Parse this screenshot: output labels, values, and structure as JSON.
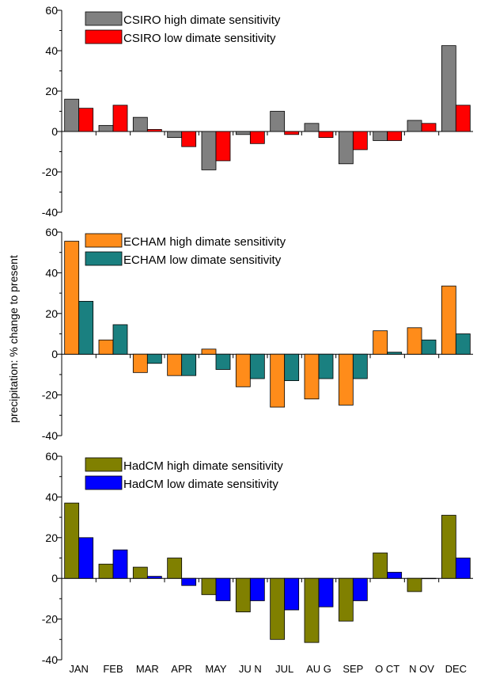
{
  "chart_data": [
    {
      "type": "bar",
      "ylabel": "precipitation: % change to present",
      "ylim": [
        -40,
        60
      ],
      "yticks": [
        -40,
        -20,
        0,
        20,
        40,
        60
      ],
      "categories": [
        "JAN",
        "FEB",
        "MAR",
        "APR",
        "MAY",
        "JUN",
        "JUL",
        "AUG",
        "SEP",
        "OCT",
        "NOV",
        "DEC"
      ],
      "legend_position": "top-left",
      "grid": false,
      "series": [
        {
          "name": "CSIRO high dimate sensitivity",
          "color": "#808080",
          "values": [
            16,
            3,
            7,
            -3,
            -19,
            -1.5,
            10,
            4,
            -16,
            -4.5,
            5.5,
            42.5
          ]
        },
        {
          "name": "CSIRO low dimate sensitivity",
          "color": "#ff0000",
          "values": [
            11.5,
            13,
            1,
            -7.5,
            -14.5,
            -6,
            -1.5,
            -3,
            -9,
            -4.5,
            4,
            13
          ]
        }
      ]
    },
    {
      "type": "bar",
      "ylim": [
        -40,
        60
      ],
      "yticks": [
        -40,
        -20,
        0,
        20,
        40,
        60
      ],
      "categories": [
        "JAN",
        "FEB",
        "MAR",
        "APR",
        "MAY",
        "JUN",
        "JUL",
        "AUG",
        "SEP",
        "OCT",
        "NOV",
        "DEC"
      ],
      "legend_position": "top-left",
      "grid": false,
      "series": [
        {
          "name": "ECHAM high dimate sensitivity",
          "color": "#ff8c1a",
          "values": [
            55.5,
            7,
            -9,
            -10.5,
            2.5,
            -16,
            -26,
            -22,
            -25,
            11.5,
            13,
            33.5
          ]
        },
        {
          "name": "ECHAM low dimate sensitivity",
          "color": "#1a8080",
          "values": [
            26,
            14.5,
            -4.5,
            -10.5,
            -7.5,
            -12,
            -13,
            -12,
            -12,
            1,
            7,
            10
          ]
        }
      ]
    },
    {
      "type": "bar",
      "ylim": [
        -40,
        60
      ],
      "yticks": [
        -40,
        -20,
        0,
        20,
        40,
        60
      ],
      "categories": [
        "JAN",
        "FEB",
        "MAR",
        "APR",
        "MAY",
        "JUN",
        "JUL",
        "AUG",
        "SEP",
        "OCT",
        "NOV",
        "DEC"
      ],
      "xtick_labels": [
        "JAN",
        "FEB",
        "MAR",
        "APR",
        "MAY",
        "JU N",
        "JUL",
        "AU G",
        "SEP",
        "O CT",
        "N OV",
        "DEC"
      ],
      "legend_position": "top-left",
      "grid": false,
      "series": [
        {
          "name": "HadCM high dimate sensitivity",
          "color": "#808000",
          "values": [
            37,
            7,
            5.5,
            10,
            -8,
            -16.5,
            -30,
            -31.5,
            -21,
            12.5,
            -6.5,
            31
          ]
        },
        {
          "name": "HadCM low dimate sensitivity",
          "color": "#0000ff",
          "values": [
            20,
            14,
            1,
            -3.5,
            -11,
            -11,
            -15.5,
            -14,
            -11,
            3,
            0,
            10
          ]
        }
      ]
    }
  ]
}
